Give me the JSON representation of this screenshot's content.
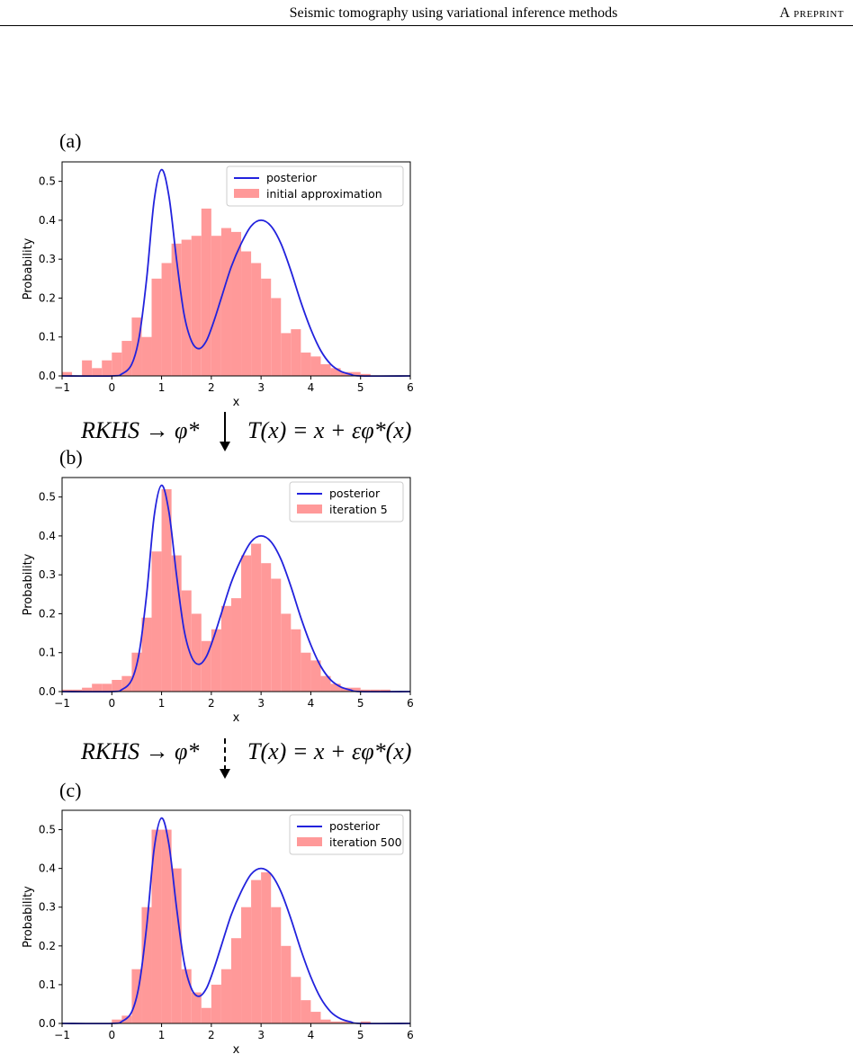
{
  "header": {
    "title": "Seismic tomography using variational inference methods",
    "tag": "A preprint"
  },
  "arrows": [
    {
      "left": "RKHS → φ*",
      "right": "T(x) = x + εφ*(x)",
      "style": "solid"
    },
    {
      "left": "RKHS → φ*",
      "right": "T(x) = x + εφ*(x)",
      "style": "dashed"
    }
  ],
  "colors": {
    "posterior": "#2222dd",
    "histogram": "#ff9999"
  },
  "chart_data": [
    {
      "panel": "(a)",
      "type": "bar",
      "xlabel": "x",
      "ylabel": "Probability",
      "xlim": [
        -1,
        6
      ],
      "ylim": [
        0,
        0.55
      ],
      "xticks": [
        -1,
        0,
        1,
        2,
        3,
        4,
        5,
        6
      ],
      "yticks": [
        0.0,
        0.1,
        0.2,
        0.3,
        0.4,
        0.5
      ],
      "legend_position": "top-right",
      "series": [
        {
          "name": "posterior",
          "type": "line",
          "values": [
            [
              -1,
              0
            ],
            [
              0,
              0
            ],
            [
              0.2,
              0.005
            ],
            [
              0.4,
              0.03
            ],
            [
              0.55,
              0.1
            ],
            [
              0.7,
              0.25
            ],
            [
              0.85,
              0.45
            ],
            [
              1.0,
              0.53
            ],
            [
              1.15,
              0.46
            ],
            [
              1.3,
              0.3
            ],
            [
              1.45,
              0.16
            ],
            [
              1.6,
              0.09
            ],
            [
              1.75,
              0.07
            ],
            [
              1.9,
              0.09
            ],
            [
              2.05,
              0.14
            ],
            [
              2.2,
              0.2
            ],
            [
              2.4,
              0.28
            ],
            [
              2.6,
              0.34
            ],
            [
              2.8,
              0.385
            ],
            [
              3.0,
              0.4
            ],
            [
              3.2,
              0.385
            ],
            [
              3.4,
              0.34
            ],
            [
              3.6,
              0.27
            ],
            [
              3.8,
              0.19
            ],
            [
              4.0,
              0.12
            ],
            [
              4.2,
              0.065
            ],
            [
              4.4,
              0.03
            ],
            [
              4.6,
              0.012
            ],
            [
              4.8,
              0.004
            ],
            [
              5.0,
              0
            ],
            [
              6.0,
              0
            ]
          ]
        },
        {
          "name": "initial approximation",
          "type": "histogram",
          "bin_start": -1,
          "bin_width": 0.2,
          "values": [
            0.01,
            0.0,
            0.04,
            0.02,
            0.04,
            0.06,
            0.09,
            0.15,
            0.1,
            0.25,
            0.29,
            0.34,
            0.35,
            0.36,
            0.43,
            0.36,
            0.38,
            0.37,
            0.32,
            0.29,
            0.25,
            0.2,
            0.11,
            0.12,
            0.06,
            0.05,
            0.03,
            0.02,
            0.01,
            0.01,
            0.005,
            0.0,
            0.0,
            0.0,
            0.0
          ]
        }
      ]
    },
    {
      "panel": "(b)",
      "type": "bar",
      "xlabel": "x",
      "ylabel": "Probability",
      "xlim": [
        -1,
        6
      ],
      "ylim": [
        0,
        0.55
      ],
      "xticks": [
        -1,
        0,
        1,
        2,
        3,
        4,
        5,
        6
      ],
      "yticks": [
        0.0,
        0.1,
        0.2,
        0.3,
        0.4,
        0.5
      ],
      "legend_position": "top-right",
      "series": [
        {
          "name": "posterior",
          "type": "line",
          "values": [
            [
              -1,
              0
            ],
            [
              0,
              0
            ],
            [
              0.2,
              0.005
            ],
            [
              0.4,
              0.03
            ],
            [
              0.55,
              0.1
            ],
            [
              0.7,
              0.25
            ],
            [
              0.85,
              0.45
            ],
            [
              1.0,
              0.53
            ],
            [
              1.15,
              0.46
            ],
            [
              1.3,
              0.3
            ],
            [
              1.45,
              0.16
            ],
            [
              1.6,
              0.09
            ],
            [
              1.75,
              0.07
            ],
            [
              1.9,
              0.09
            ],
            [
              2.05,
              0.14
            ],
            [
              2.2,
              0.2
            ],
            [
              2.4,
              0.28
            ],
            [
              2.6,
              0.34
            ],
            [
              2.8,
              0.385
            ],
            [
              3.0,
              0.4
            ],
            [
              3.2,
              0.385
            ],
            [
              3.4,
              0.34
            ],
            [
              3.6,
              0.27
            ],
            [
              3.8,
              0.19
            ],
            [
              4.0,
              0.12
            ],
            [
              4.2,
              0.065
            ],
            [
              4.4,
              0.03
            ],
            [
              4.6,
              0.012
            ],
            [
              4.8,
              0.004
            ],
            [
              5.0,
              0
            ],
            [
              6.0,
              0
            ]
          ]
        },
        {
          "name": "iteration 5",
          "type": "histogram",
          "bin_start": -1,
          "bin_width": 0.2,
          "values": [
            0.005,
            0.005,
            0.01,
            0.02,
            0.02,
            0.03,
            0.04,
            0.1,
            0.19,
            0.36,
            0.52,
            0.35,
            0.26,
            0.2,
            0.13,
            0.16,
            0.22,
            0.24,
            0.35,
            0.38,
            0.33,
            0.29,
            0.2,
            0.16,
            0.1,
            0.08,
            0.04,
            0.02,
            0.01,
            0.01,
            0.005,
            0.005,
            0.005,
            0.0,
            0.0
          ]
        }
      ]
    },
    {
      "panel": "(c)",
      "type": "bar",
      "xlabel": "x",
      "ylabel": "Probability",
      "xlim": [
        -1,
        6
      ],
      "ylim": [
        0,
        0.55
      ],
      "xticks": [
        -1,
        0,
        1,
        2,
        3,
        4,
        5,
        6
      ],
      "yticks": [
        0.0,
        0.1,
        0.2,
        0.3,
        0.4,
        0.5
      ],
      "legend_position": "top-right",
      "series": [
        {
          "name": "posterior",
          "type": "line",
          "values": [
            [
              -1,
              0
            ],
            [
              0,
              0
            ],
            [
              0.2,
              0.005
            ],
            [
              0.4,
              0.03
            ],
            [
              0.55,
              0.1
            ],
            [
              0.7,
              0.25
            ],
            [
              0.85,
              0.45
            ],
            [
              1.0,
              0.53
            ],
            [
              1.15,
              0.46
            ],
            [
              1.3,
              0.3
            ],
            [
              1.45,
              0.16
            ],
            [
              1.6,
              0.09
            ],
            [
              1.75,
              0.07
            ],
            [
              1.9,
              0.09
            ],
            [
              2.05,
              0.14
            ],
            [
              2.2,
              0.2
            ],
            [
              2.4,
              0.28
            ],
            [
              2.6,
              0.34
            ],
            [
              2.8,
              0.385
            ],
            [
              3.0,
              0.4
            ],
            [
              3.2,
              0.385
            ],
            [
              3.4,
              0.34
            ],
            [
              3.6,
              0.27
            ],
            [
              3.8,
              0.19
            ],
            [
              4.0,
              0.12
            ],
            [
              4.2,
              0.065
            ],
            [
              4.4,
              0.03
            ],
            [
              4.6,
              0.012
            ],
            [
              4.8,
              0.004
            ],
            [
              5.0,
              0
            ],
            [
              6.0,
              0
            ]
          ]
        },
        {
          "name": "iteration 500",
          "type": "histogram",
          "bin_start": -1,
          "bin_width": 0.2,
          "values": [
            0.0,
            0.0,
            0.0,
            0.0,
            0.0,
            0.01,
            0.02,
            0.14,
            0.3,
            0.5,
            0.5,
            0.4,
            0.14,
            0.08,
            0.04,
            0.1,
            0.14,
            0.22,
            0.3,
            0.37,
            0.39,
            0.3,
            0.2,
            0.12,
            0.06,
            0.03,
            0.01,
            0.005,
            0.005,
            0.0,
            0.005,
            0.0,
            0.0,
            0.0,
            0.0
          ]
        }
      ]
    }
  ]
}
